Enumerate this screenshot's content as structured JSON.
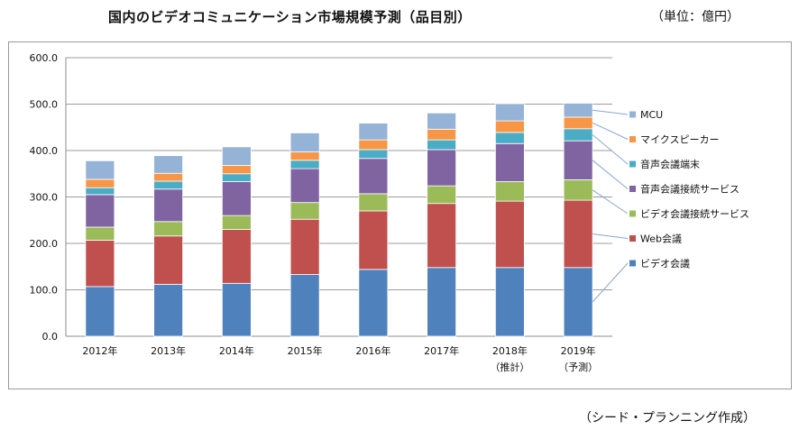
{
  "title": "国内のビデオコミュニケーション市場規模予測（品目別）",
  "unit": "（単位：億円）",
  "source": "（シード・プランニング作成）",
  "chart_data": {
    "type": "bar",
    "stacked": true,
    "categories": [
      [
        "2012年"
      ],
      [
        "2013年"
      ],
      [
        "2014年"
      ],
      [
        "2015年"
      ],
      [
        "2016年"
      ],
      [
        "2017年"
      ],
      [
        "2018年",
        "（推計）"
      ],
      [
        "2019年",
        "（予測）"
      ]
    ],
    "series": [
      {
        "name": "ビデオ会議",
        "color": "#4f81bd",
        "values": [
          107,
          112,
          114,
          133,
          144,
          148,
          148,
          148
        ]
      },
      {
        "name": "Web会議",
        "color": "#c0504d",
        "values": [
          100,
          104,
          116,
          119,
          126,
          138,
          143,
          145
        ]
      },
      {
        "name": "ビデオ会議接続サービス",
        "color": "#9bbb59",
        "values": [
          28,
          31,
          30,
          36,
          37,
          38,
          42,
          44
        ]
      },
      {
        "name": "音声会議接続サービス",
        "color": "#8064a2",
        "values": [
          70,
          70,
          73,
          73,
          76,
          78,
          82,
          84
        ]
      },
      {
        "name": "音声会議端末",
        "color": "#4bacc6",
        "values": [
          15,
          17,
          17,
          18,
          19,
          21,
          24,
          26
        ]
      },
      {
        "name": "マイクスピーカー",
        "color": "#f79646",
        "values": [
          18,
          17,
          18,
          18,
          21,
          23,
          25,
          25
        ]
      },
      {
        "name": "MCU",
        "color": "#95b3d7",
        "values": [
          40,
          38,
          40,
          41,
          36,
          35,
          37,
          30
        ]
      }
    ],
    "yticks": [
      "0.0",
      "100.0",
      "200.0",
      "300.0",
      "400.0",
      "500.0",
      "600.0"
    ],
    "ylim": [
      0,
      600
    ],
    "grid": true,
    "legend": "right"
  }
}
